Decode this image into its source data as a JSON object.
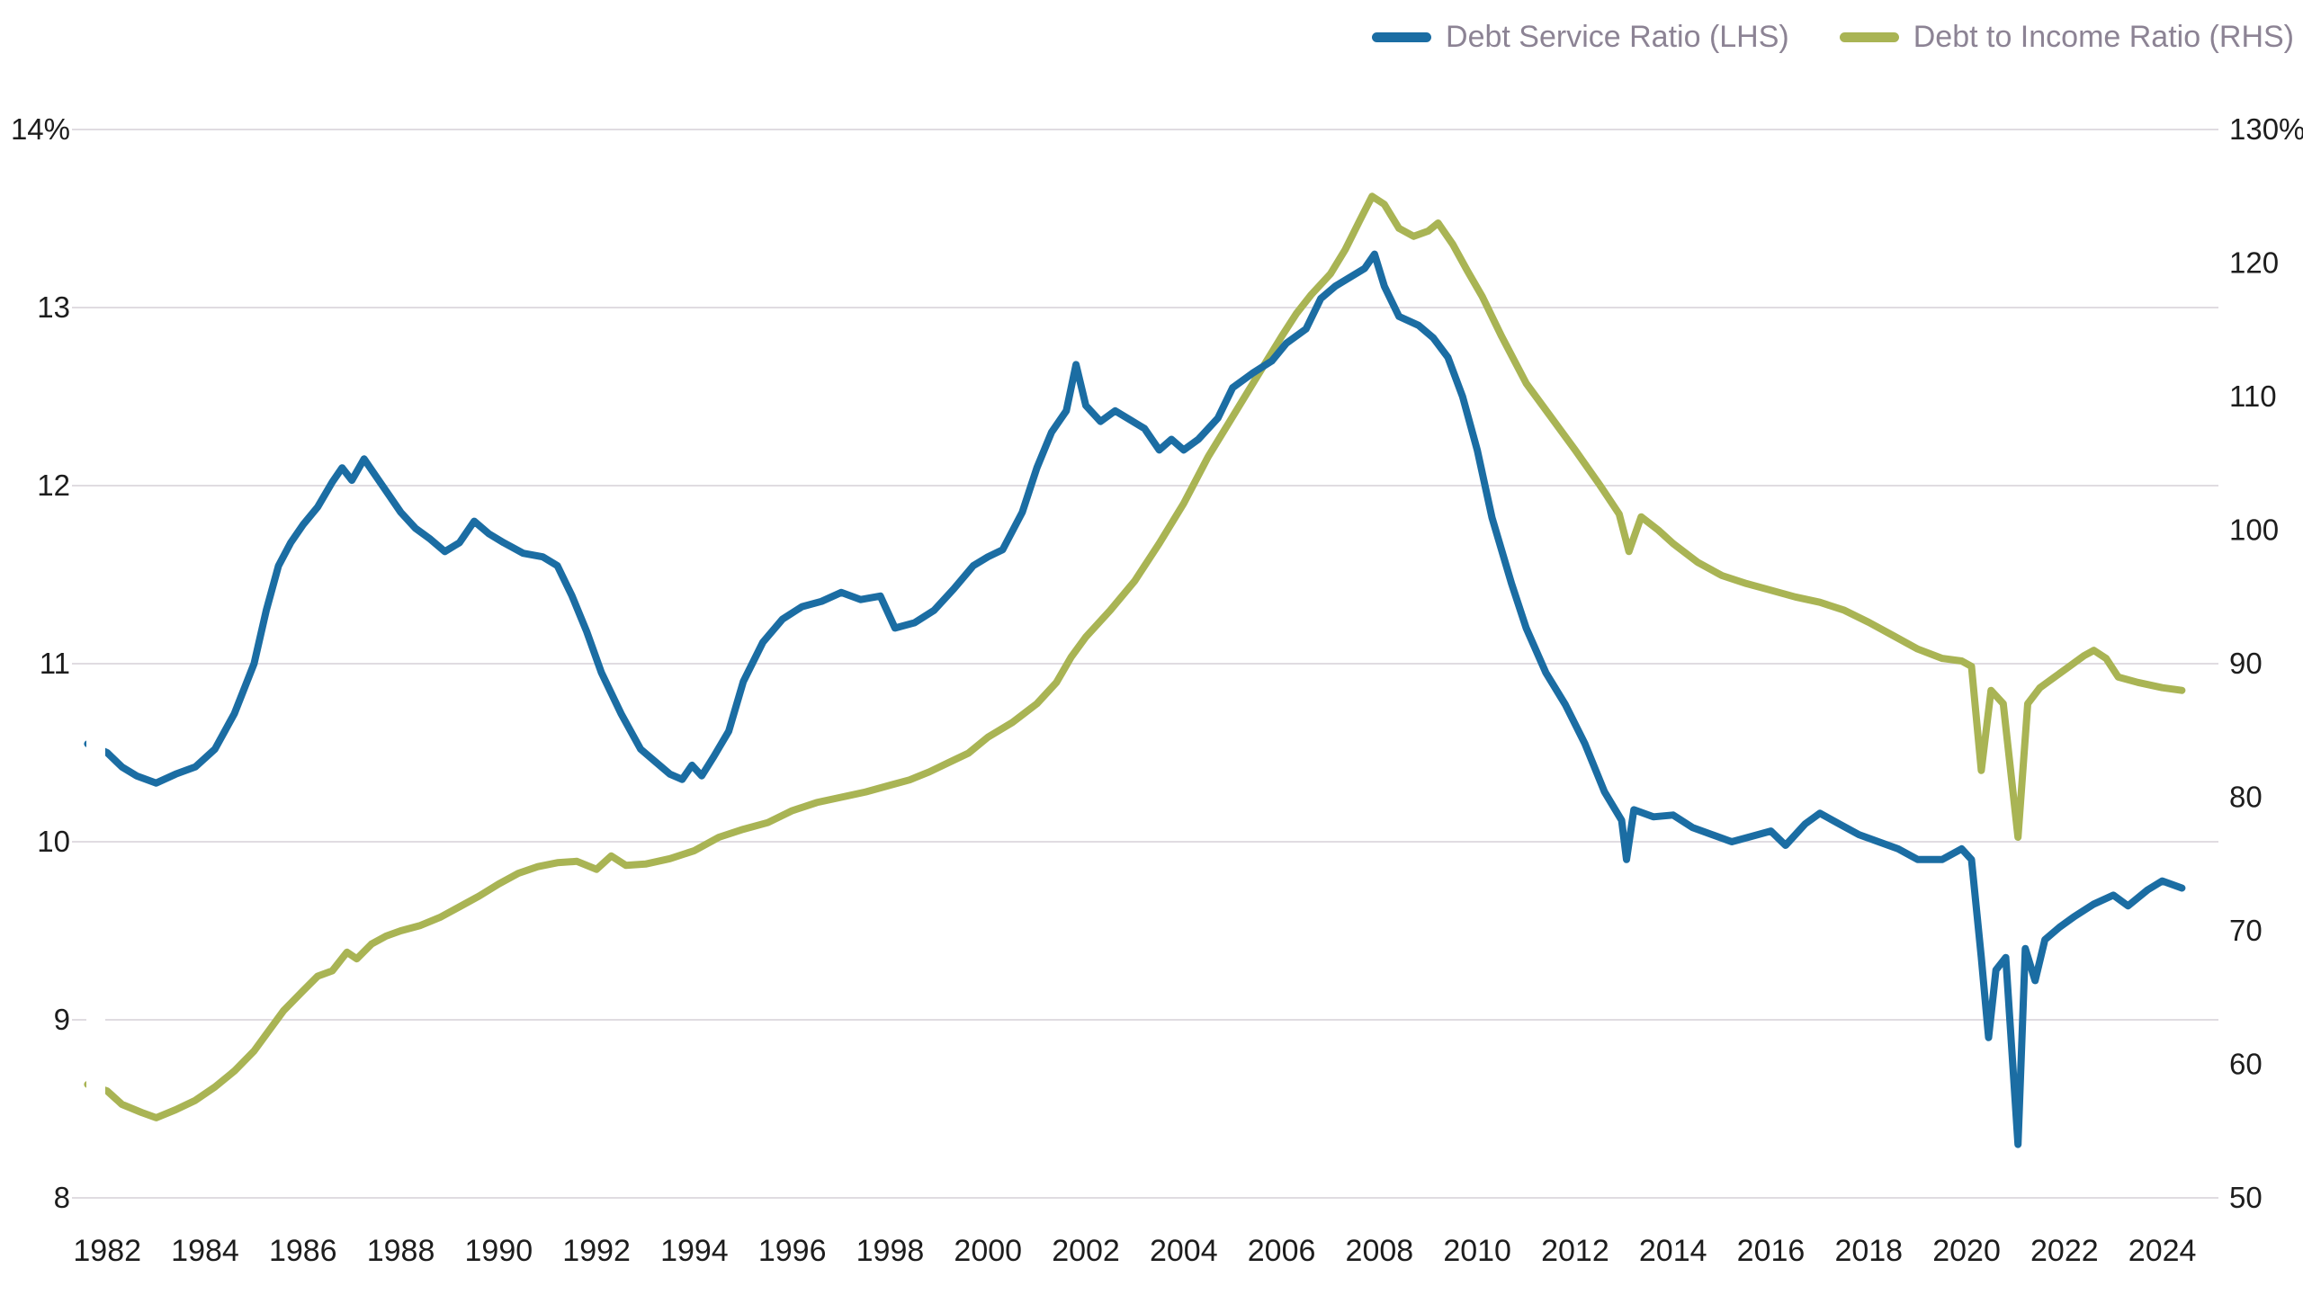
{
  "legend": [
    {
      "label": "Debt Service Ratio (LHS)",
      "color": "#1b6da3"
    },
    {
      "label": "Debt to Income Ratio (RHS)",
      "color": "#a9b454"
    }
  ],
  "colors": {
    "grid": "#d5d1d7",
    "tick_text": "#1d1d1d",
    "legend_text": "#8c8394",
    "background": "#ffffff"
  },
  "chart_data": {
    "type": "line",
    "title": "",
    "grid": "horizontal",
    "legend_position": "top-right",
    "x_axis": {
      "values": [
        1982,
        1984,
        1986,
        1988,
        1990,
        1992,
        1994,
        1996,
        1998,
        2000,
        2002,
        2004,
        2006,
        2008,
        2010,
        2012,
        2014,
        2016,
        2018,
        2020,
        2022,
        2024
      ],
      "labels": [
        "1982",
        "1984",
        "1986",
        "1988",
        "1990",
        "1992",
        "1994",
        "1996",
        "1998",
        "2000",
        "2002",
        "2004",
        "2006",
        "2008",
        "2010",
        "2012",
        "2014",
        "2016",
        "2018",
        "2020",
        "2022",
        "2024"
      ],
      "min": 1981.5,
      "max": 2025.0
    },
    "left_axis": {
      "labels": [
        "14%",
        "13",
        "12",
        "11",
        "10",
        "9",
        "8"
      ],
      "values": [
        14,
        13,
        12,
        11,
        10,
        9,
        8
      ],
      "min": 8,
      "max": 14
    },
    "right_axis": {
      "labels": [
        "130%",
        "120",
        "110",
        "100",
        "90",
        "80",
        "70",
        "60",
        "50"
      ],
      "values": [
        130,
        120,
        110,
        100,
        90,
        80,
        70,
        60,
        50
      ],
      "min": 50,
      "max": 130
    },
    "series": [
      {
        "name": "Debt to Income Ratio (RHS)",
        "axis": "right",
        "color": "#a9b454",
        "points": [
          [
            1981.6,
            58.5
          ],
          [
            1982.0,
            58
          ],
          [
            1982.3,
            57
          ],
          [
            1982.7,
            56.4
          ],
          [
            1983.0,
            56
          ],
          [
            1983.4,
            56.6
          ],
          [
            1983.8,
            57.3
          ],
          [
            1984.2,
            58.3
          ],
          [
            1984.6,
            59.5
          ],
          [
            1985.0,
            61
          ],
          [
            1985.3,
            62.5
          ],
          [
            1985.6,
            64
          ],
          [
            1986.0,
            65.5
          ],
          [
            1986.3,
            66.6
          ],
          [
            1986.6,
            67
          ],
          [
            1986.9,
            68.4
          ],
          [
            1987.1,
            67.9
          ],
          [
            1987.4,
            69
          ],
          [
            1987.7,
            69.6
          ],
          [
            1988.0,
            70
          ],
          [
            1988.4,
            70.4
          ],
          [
            1988.8,
            71
          ],
          [
            1989.2,
            71.8
          ],
          [
            1989.6,
            72.6
          ],
          [
            1990.0,
            73.5
          ],
          [
            1990.4,
            74.3
          ],
          [
            1990.8,
            74.8
          ],
          [
            1991.2,
            75.1
          ],
          [
            1991.6,
            75.2
          ],
          [
            1992.0,
            74.6
          ],
          [
            1992.3,
            75.6
          ],
          [
            1992.6,
            74.9
          ],
          [
            1993.0,
            75
          ],
          [
            1993.5,
            75.4
          ],
          [
            1994.0,
            76
          ],
          [
            1994.5,
            77
          ],
          [
            1995.0,
            77.6
          ],
          [
            1995.5,
            78.1
          ],
          [
            1996.0,
            79
          ],
          [
            1996.5,
            79.6
          ],
          [
            1997.0,
            80
          ],
          [
            1997.5,
            80.4
          ],
          [
            1998.0,
            80.9
          ],
          [
            1998.4,
            81.3
          ],
          [
            1998.8,
            81.9
          ],
          [
            1999.2,
            82.6
          ],
          [
            1999.6,
            83.3
          ],
          [
            2000.0,
            84.5
          ],
          [
            2000.5,
            85.6
          ],
          [
            2001.0,
            87
          ],
          [
            2001.4,
            88.6
          ],
          [
            2001.7,
            90.5
          ],
          [
            2002.0,
            92
          ],
          [
            2002.5,
            94
          ],
          [
            2003.0,
            96.2
          ],
          [
            2003.5,
            99
          ],
          [
            2004.0,
            102
          ],
          [
            2004.5,
            105.5
          ],
          [
            2005.0,
            108.5
          ],
          [
            2005.5,
            111.5
          ],
          [
            2006.0,
            114.5
          ],
          [
            2006.3,
            116.2
          ],
          [
            2006.6,
            117.6
          ],
          [
            2007.0,
            119.2
          ],
          [
            2007.3,
            121
          ],
          [
            2007.6,
            123.2
          ],
          [
            2007.85,
            125
          ],
          [
            2008.1,
            124.4
          ],
          [
            2008.4,
            122.6
          ],
          [
            2008.7,
            122
          ],
          [
            2009.0,
            122.4
          ],
          [
            2009.2,
            123
          ],
          [
            2009.5,
            121.4
          ],
          [
            2009.8,
            119.4
          ],
          [
            2010.1,
            117.5
          ],
          [
            2010.5,
            114.5
          ],
          [
            2011.0,
            111
          ],
          [
            2011.5,
            108.5
          ],
          [
            2012.0,
            106
          ],
          [
            2012.5,
            103.4
          ],
          [
            2012.9,
            101.2
          ],
          [
            2013.1,
            98.4
          ],
          [
            2013.35,
            101
          ],
          [
            2013.7,
            100
          ],
          [
            2014.0,
            99
          ],
          [
            2014.5,
            97.6
          ],
          [
            2015.0,
            96.6
          ],
          [
            2015.5,
            96
          ],
          [
            2016.0,
            95.5
          ],
          [
            2016.5,
            95
          ],
          [
            2017.0,
            94.6
          ],
          [
            2017.5,
            94
          ],
          [
            2018.0,
            93.1
          ],
          [
            2018.5,
            92.1
          ],
          [
            2019.0,
            91.1
          ],
          [
            2019.5,
            90.4
          ],
          [
            2019.9,
            90.2
          ],
          [
            2020.1,
            89.8
          ],
          [
            2020.3,
            82
          ],
          [
            2020.5,
            88
          ],
          [
            2020.75,
            87
          ],
          [
            2021.05,
            77
          ],
          [
            2021.25,
            87
          ],
          [
            2021.5,
            88.2
          ],
          [
            2021.8,
            89
          ],
          [
            2022.1,
            89.8
          ],
          [
            2022.4,
            90.6
          ],
          [
            2022.6,
            91
          ],
          [
            2022.85,
            90.4
          ],
          [
            2023.1,
            89
          ],
          [
            2023.5,
            88.6
          ],
          [
            2024.0,
            88.2
          ],
          [
            2024.4,
            88
          ]
        ]
      },
      {
        "name": "Debt Service Ratio (LHS)",
        "axis": "left",
        "color": "#1b6da3",
        "points": [
          [
            1981.6,
            10.55
          ],
          [
            1982.0,
            10.5
          ],
          [
            1982.3,
            10.42
          ],
          [
            1982.6,
            10.37
          ],
          [
            1983.0,
            10.33
          ],
          [
            1983.4,
            10.38
          ],
          [
            1983.8,
            10.42
          ],
          [
            1984.2,
            10.52
          ],
          [
            1984.6,
            10.72
          ],
          [
            1985.0,
            11.0
          ],
          [
            1985.25,
            11.3
          ],
          [
            1985.5,
            11.55
          ],
          [
            1985.75,
            11.68
          ],
          [
            1986.0,
            11.78
          ],
          [
            1986.3,
            11.88
          ],
          [
            1986.6,
            12.02
          ],
          [
            1986.8,
            12.1
          ],
          [
            1987.0,
            12.03
          ],
          [
            1987.25,
            12.15
          ],
          [
            1987.5,
            12.05
          ],
          [
            1987.75,
            11.95
          ],
          [
            1988.0,
            11.85
          ],
          [
            1988.3,
            11.76
          ],
          [
            1988.6,
            11.7
          ],
          [
            1988.9,
            11.63
          ],
          [
            1989.2,
            11.68
          ],
          [
            1989.5,
            11.8
          ],
          [
            1989.8,
            11.73
          ],
          [
            1990.1,
            11.68
          ],
          [
            1990.5,
            11.62
          ],
          [
            1990.9,
            11.6
          ],
          [
            1991.2,
            11.55
          ],
          [
            1991.5,
            11.38
          ],
          [
            1991.8,
            11.18
          ],
          [
            1992.1,
            10.95
          ],
          [
            1992.5,
            10.72
          ],
          [
            1992.9,
            10.52
          ],
          [
            1993.2,
            10.45
          ],
          [
            1993.5,
            10.38
          ],
          [
            1993.75,
            10.35
          ],
          [
            1993.95,
            10.43
          ],
          [
            1994.15,
            10.37
          ],
          [
            1994.4,
            10.48
          ],
          [
            1994.7,
            10.62
          ],
          [
            1995.0,
            10.9
          ],
          [
            1995.4,
            11.12
          ],
          [
            1995.8,
            11.25
          ],
          [
            1996.2,
            11.32
          ],
          [
            1996.6,
            11.35
          ],
          [
            1997.0,
            11.4
          ],
          [
            1997.4,
            11.36
          ],
          [
            1997.8,
            11.38
          ],
          [
            1998.1,
            11.2
          ],
          [
            1998.5,
            11.23
          ],
          [
            1998.9,
            11.3
          ],
          [
            1999.3,
            11.42
          ],
          [
            1999.7,
            11.55
          ],
          [
            2000.0,
            11.6
          ],
          [
            2000.3,
            11.64
          ],
          [
            2000.7,
            11.85
          ],
          [
            2001.0,
            12.1
          ],
          [
            2001.3,
            12.3
          ],
          [
            2001.6,
            12.42
          ],
          [
            2001.8,
            12.68
          ],
          [
            2002.0,
            12.45
          ],
          [
            2002.3,
            12.36
          ],
          [
            2002.6,
            12.42
          ],
          [
            2002.9,
            12.37
          ],
          [
            2003.2,
            12.32
          ],
          [
            2003.5,
            12.2
          ],
          [
            2003.75,
            12.26
          ],
          [
            2004.0,
            12.2
          ],
          [
            2004.3,
            12.26
          ],
          [
            2004.7,
            12.38
          ],
          [
            2005.0,
            12.55
          ],
          [
            2005.4,
            12.63
          ],
          [
            2005.8,
            12.7
          ],
          [
            2006.1,
            12.8
          ],
          [
            2006.5,
            12.88
          ],
          [
            2006.8,
            13.05
          ],
          [
            2007.1,
            13.12
          ],
          [
            2007.4,
            13.17
          ],
          [
            2007.7,
            13.22
          ],
          [
            2007.9,
            13.3
          ],
          [
            2008.1,
            13.12
          ],
          [
            2008.4,
            12.95
          ],
          [
            2008.8,
            12.9
          ],
          [
            2009.1,
            12.83
          ],
          [
            2009.4,
            12.72
          ],
          [
            2009.7,
            12.5
          ],
          [
            2010.0,
            12.2
          ],
          [
            2010.3,
            11.82
          ],
          [
            2010.7,
            11.45
          ],
          [
            2011.0,
            11.2
          ],
          [
            2011.4,
            10.95
          ],
          [
            2011.8,
            10.77
          ],
          [
            2012.2,
            10.55
          ],
          [
            2012.6,
            10.28
          ],
          [
            2012.95,
            10.12
          ],
          [
            2013.05,
            9.9
          ],
          [
            2013.2,
            10.18
          ],
          [
            2013.6,
            10.14
          ],
          [
            2014.0,
            10.15
          ],
          [
            2014.4,
            10.08
          ],
          [
            2014.8,
            10.04
          ],
          [
            2015.2,
            10.0
          ],
          [
            2015.6,
            10.03
          ],
          [
            2016.0,
            10.06
          ],
          [
            2016.3,
            9.98
          ],
          [
            2016.7,
            10.1
          ],
          [
            2017.0,
            10.16
          ],
          [
            2017.4,
            10.1
          ],
          [
            2017.8,
            10.04
          ],
          [
            2018.2,
            10.0
          ],
          [
            2018.6,
            9.96
          ],
          [
            2019.0,
            9.9
          ],
          [
            2019.5,
            9.9
          ],
          [
            2019.9,
            9.96
          ],
          [
            2020.1,
            9.9
          ],
          [
            2020.3,
            9.35
          ],
          [
            2020.45,
            8.9
          ],
          [
            2020.6,
            9.28
          ],
          [
            2020.8,
            9.35
          ],
          [
            2021.05,
            8.3
          ],
          [
            2021.2,
            9.4
          ],
          [
            2021.4,
            9.22
          ],
          [
            2021.6,
            9.45
          ],
          [
            2021.9,
            9.52
          ],
          [
            2022.2,
            9.58
          ],
          [
            2022.6,
            9.65
          ],
          [
            2023.0,
            9.7
          ],
          [
            2023.3,
            9.64
          ],
          [
            2023.7,
            9.73
          ],
          [
            2024.0,
            9.78
          ],
          [
            2024.4,
            9.74
          ]
        ]
      }
    ]
  }
}
